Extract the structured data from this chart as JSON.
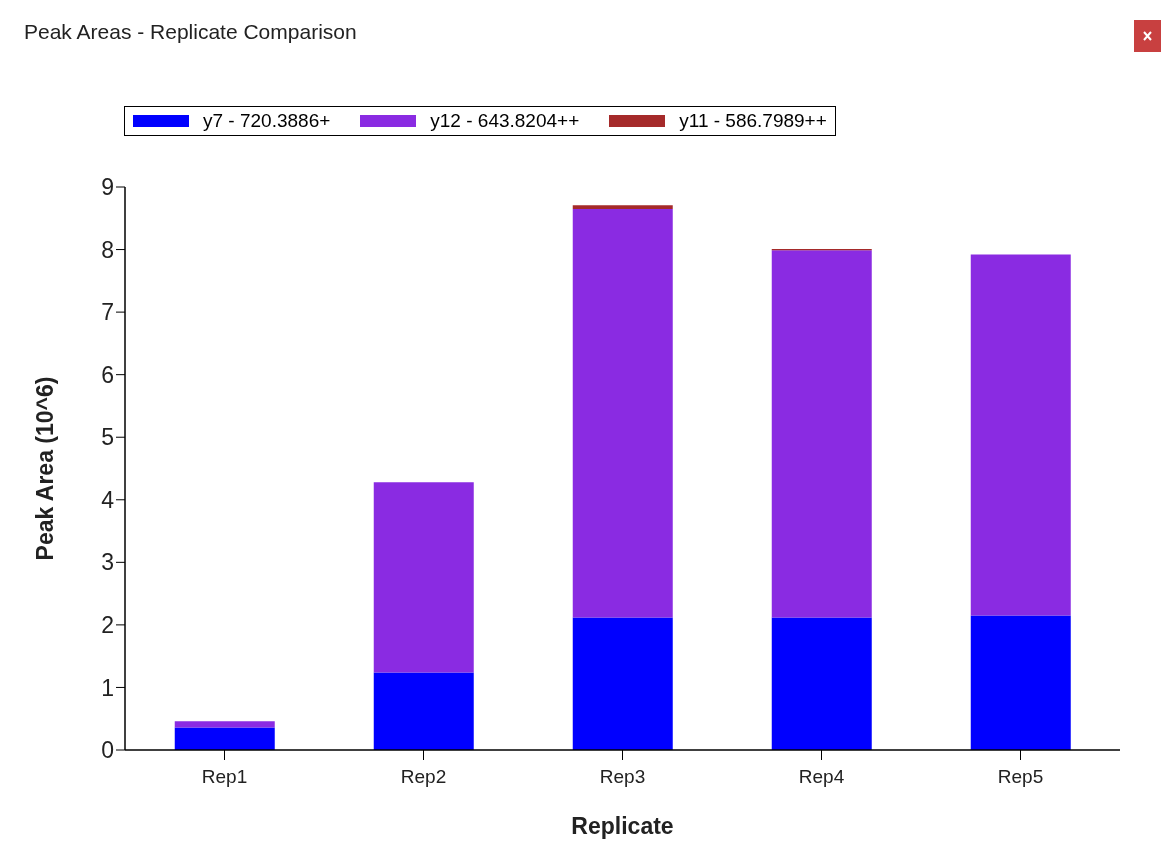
{
  "chart_data": {
    "type": "bar",
    "title": "Peak Areas - Replicate Comparison",
    "xlabel": "Replicate",
    "ylabel": "Peak Area (10^6)",
    "categories": [
      "Rep1",
      "Rep2",
      "Rep3",
      "Rep4",
      "Rep5"
    ],
    "series": [
      {
        "name": "y7 - 720.3886+",
        "color": "#0000ff",
        "values": [
          0.36,
          1.24,
          2.12,
          2.12,
          2.15
        ]
      },
      {
        "name": "y12 - 643.8204++",
        "color": "#8a2be2",
        "values": [
          0.1,
          3.04,
          6.53,
          5.87,
          5.77
        ]
      },
      {
        "name": "y11 - 586.7989++",
        "color": "#a52a2a",
        "values": [
          0,
          0,
          0.06,
          0.02,
          0
        ]
      }
    ],
    "stacked": true,
    "ylim": [
      0,
      9
    ],
    "yticks": [
      0,
      1,
      2,
      3,
      4,
      5,
      6,
      7,
      8,
      9
    ],
    "grid": false,
    "legend": "top"
  }
}
